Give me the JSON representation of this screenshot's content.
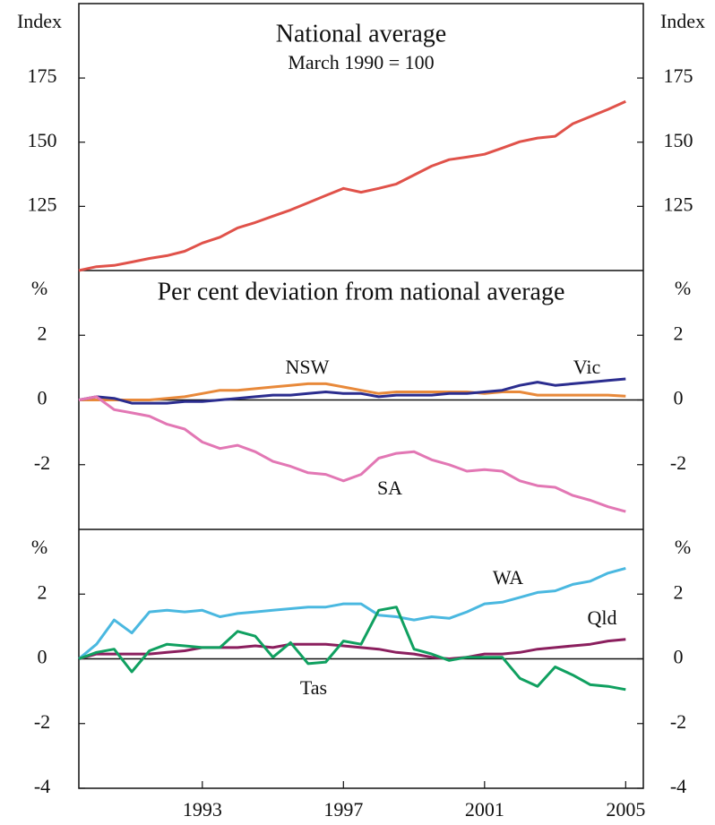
{
  "chart_data": [
    {
      "type": "line",
      "title": "National average",
      "subtitle": "March 1990 = 100",
      "y_label": "Index",
      "x": [
        1990,
        1990.5,
        1991,
        1991.5,
        1992,
        1992.5,
        1993,
        1993.5,
        1994,
        1994.5,
        1995,
        1995.5,
        1996,
        1996.5,
        1997,
        1997.5,
        1998,
        1998.5,
        1999,
        1999.5,
        2000,
        2000.5,
        2001,
        2001.5,
        2002,
        2002.5,
        2003,
        2003.5,
        2004,
        2004.5,
        2005,
        2005.5
      ],
      "xlim": [
        1990,
        2006
      ],
      "ylim": [
        100,
        204
      ],
      "yticks": [
        125,
        150,
        175
      ],
      "series": [
        {
          "name": null,
          "color": "#e0524a",
          "values": [
            100,
            101.5,
            102,
            103.3,
            104.7,
            105.8,
            107.5,
            110.7,
            113,
            116.6,
            118.7,
            121.2,
            123.6,
            126.4,
            129.2,
            132,
            130.5,
            132,
            133.7,
            137.2,
            140.7,
            143.2,
            144.2,
            145.3,
            147.7,
            150.2,
            151.6,
            152.3,
            157.2,
            160,
            162.8,
            165.9
          ]
        }
      ]
    },
    {
      "type": "line",
      "title": "Per cent deviation from national average",
      "y_label": "%",
      "x": [
        1990,
        1990.5,
        1991,
        1991.5,
        1992,
        1992.5,
        1993,
        1993.5,
        1994,
        1994.5,
        1995,
        1995.5,
        1996,
        1996.5,
        1997,
        1997.5,
        1998,
        1998.5,
        1999,
        1999.5,
        2000,
        2000.5,
        2001,
        2001.5,
        2002,
        2002.5,
        2003,
        2003.5,
        2004,
        2004.5,
        2005,
        2005.5
      ],
      "xlim": [
        1990,
        2006
      ],
      "ylim": [
        -4,
        4
      ],
      "yticks": [
        -2,
        0,
        2
      ],
      "zero_line": true,
      "series": [
        {
          "name": "NSW",
          "color": "#e8893a",
          "values": [
            0,
            0,
            0,
            0,
            0,
            0.05,
            0.1,
            0.2,
            0.3,
            0.3,
            0.35,
            0.4,
            0.45,
            0.5,
            0.5,
            0.4,
            0.3,
            0.2,
            0.25,
            0.25,
            0.25,
            0.25,
            0.25,
            0.2,
            0.25,
            0.25,
            0.15,
            0.15,
            0.15,
            0.15,
            0.15,
            0.12
          ]
        },
        {
          "name": "Vic",
          "color": "#2b2d8f",
          "values": [
            0,
            0.1,
            0.05,
            -0.1,
            -0.1,
            -0.1,
            -0.05,
            -0.05,
            0,
            0.05,
            0.1,
            0.15,
            0.15,
            0.2,
            0.25,
            0.2,
            0.2,
            0.1,
            0.15,
            0.15,
            0.15,
            0.2,
            0.2,
            0.25,
            0.3,
            0.45,
            0.55,
            0.45,
            0.5,
            0.55,
            0.6,
            0.65
          ]
        },
        {
          "name": "SA",
          "color": "#e277b4",
          "values": [
            0,
            0.1,
            -0.3,
            -0.4,
            -0.5,
            -0.75,
            -0.9,
            -1.3,
            -1.5,
            -1.4,
            -1.6,
            -1.9,
            -2.05,
            -2.25,
            -2.3,
            -2.5,
            -2.3,
            -1.8,
            -1.65,
            -1.6,
            -1.85,
            -2,
            -2.2,
            -2.15,
            -2.2,
            -2.5,
            -2.65,
            -2.7,
            -2.95,
            -3.1,
            -3.3,
            -3.45
          ]
        }
      ]
    },
    {
      "type": "line",
      "y_label": "%",
      "x": [
        1990,
        1990.5,
        1991,
        1991.5,
        1992,
        1992.5,
        1993,
        1993.5,
        1994,
        1994.5,
        1995,
        1995.5,
        1996,
        1996.5,
        1997,
        1997.5,
        1998,
        1998.5,
        1999,
        1999.5,
        2000,
        2000.5,
        2001,
        2001.5,
        2002,
        2002.5,
        2003,
        2003.5,
        2004,
        2004.5,
        2005,
        2005.5
      ],
      "xlim": [
        1990,
        2006
      ],
      "ylim": [
        -4,
        4
      ],
      "yticks": [
        -4,
        -2,
        0,
        2
      ],
      "zero_line": true,
      "xticks": [
        {
          "value": 1993.5,
          "label": "1993"
        },
        {
          "value": 1997.5,
          "label": "1997"
        },
        {
          "value": 2001.5,
          "label": "2001"
        },
        {
          "value": 2005.5,
          "label": "2005"
        }
      ],
      "series": [
        {
          "name": "WA",
          "color": "#4ab8e0",
          "values": [
            0,
            0.45,
            1.2,
            0.8,
            1.45,
            1.5,
            1.45,
            1.5,
            1.3,
            1.4,
            1.45,
            1.5,
            1.55,
            1.6,
            1.6,
            1.7,
            1.7,
            1.35,
            1.3,
            1.2,
            1.3,
            1.25,
            1.45,
            1.7,
            1.75,
            1.9,
            2.05,
            2.1,
            2.3,
            2.4,
            2.65,
            2.8
          ]
        },
        {
          "name": "Qld",
          "color": "#8b1f5e",
          "values": [
            0,
            0.15,
            0.15,
            0.15,
            0.15,
            0.2,
            0.25,
            0.35,
            0.35,
            0.35,
            0.4,
            0.35,
            0.45,
            0.45,
            0.45,
            0.4,
            0.35,
            0.3,
            0.2,
            0.15,
            0.05,
            0,
            0.05,
            0.15,
            0.15,
            0.2,
            0.3,
            0.35,
            0.4,
            0.45,
            0.55,
            0.6
          ]
        },
        {
          "name": "Tas",
          "color": "#10a060",
          "values": [
            0,
            0.2,
            0.3,
            -0.4,
            0.25,
            0.45,
            0.4,
            0.35,
            0.35,
            0.85,
            0.7,
            0.05,
            0.5,
            -0.15,
            -0.1,
            0.55,
            0.45,
            1.5,
            1.6,
            0.3,
            0.15,
            -0.05,
            0.05,
            0.05,
            0.05,
            -0.6,
            -0.85,
            -0.25,
            -0.5,
            -0.8,
            -0.85,
            -0.95
          ]
        }
      ]
    }
  ]
}
